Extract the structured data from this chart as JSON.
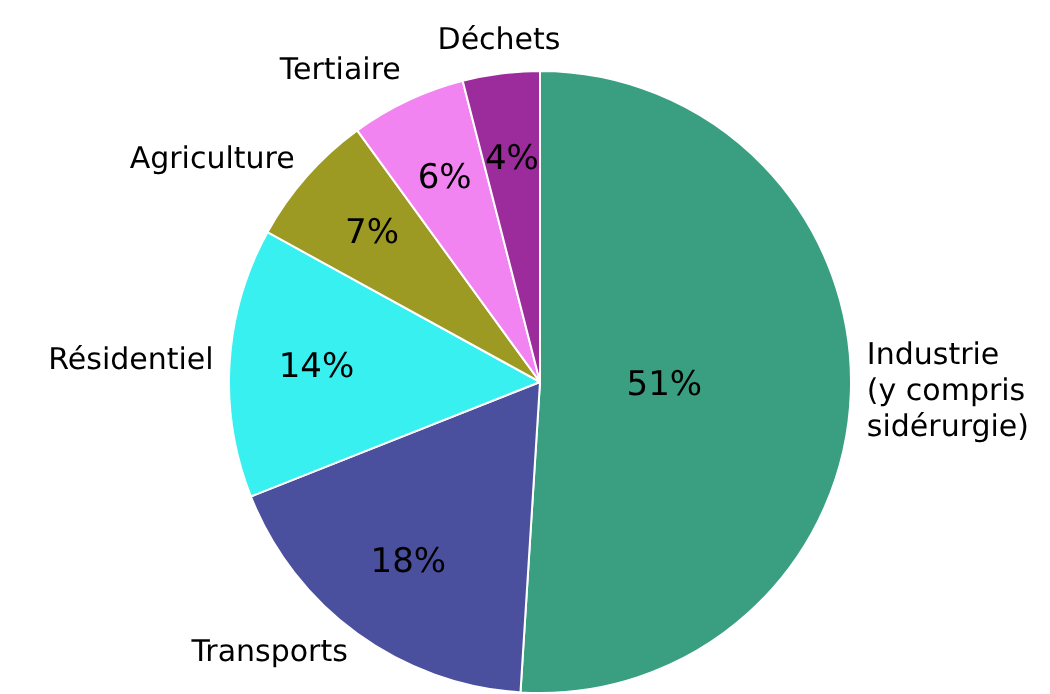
{
  "chart_data": {
    "type": "pie",
    "categories": [
      "Industrie\n(y compris\nsidérurgie)",
      "Transports",
      "Résidentiel",
      "Agriculture",
      "Tertiaire",
      "Déchets"
    ],
    "values": [
      51,
      18,
      14,
      7,
      6,
      4
    ],
    "colors": [
      "#3a9e80",
      "#4b509e",
      "#38f0f0",
      "#9c9a22",
      "#f284f2",
      "#9c2c9c"
    ],
    "value_labels": [
      "51%",
      "18%",
      "14%",
      "7%",
      "6%",
      "4%"
    ],
    "legend": false
  }
}
